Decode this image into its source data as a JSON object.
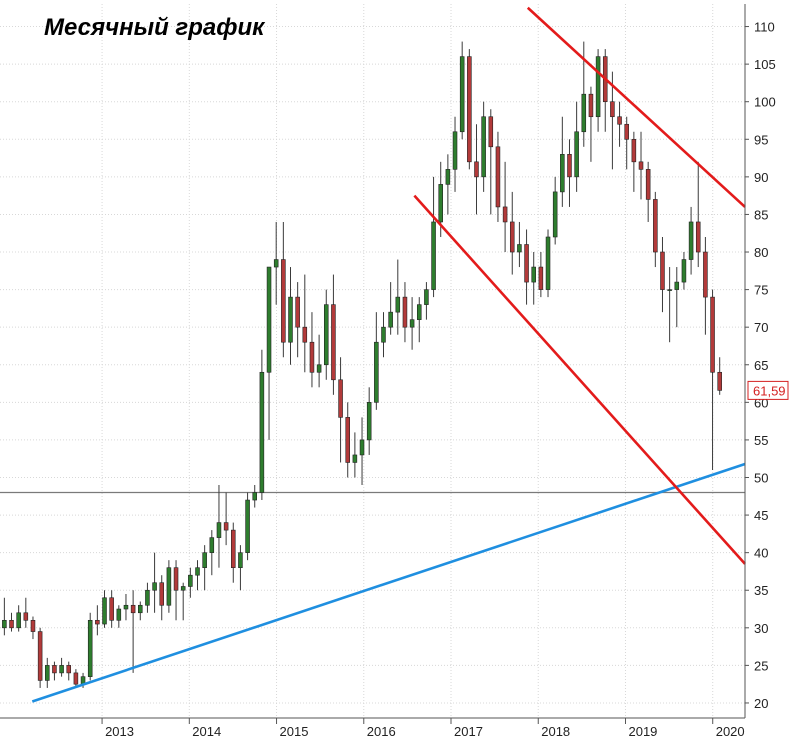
{
  "title": "Месячный график",
  "price_badge": "61,59",
  "colors": {
    "up_fill": "#2e7d2e",
    "down_fill": "#b23a3a",
    "wick": "#3a3a3a",
    "resistance_line": "#e31b1b",
    "support_line": "#1f8fe0",
    "level_line": "#7a7a7a",
    "badge_text": "#d42020",
    "axis": "#555555"
  },
  "chart_data": {
    "type": "candlestick",
    "title": "Месячный график",
    "xlabel": "",
    "ylabel": "",
    "ylim": [
      18,
      113
    ],
    "y_ticks": [
      20,
      25,
      30,
      35,
      40,
      45,
      50,
      55,
      60,
      65,
      70,
      75,
      80,
      85,
      90,
      95,
      100,
      105,
      110
    ],
    "x_ticks": [
      "2013",
      "2014",
      "2015",
      "2016",
      "2017",
      "2018",
      "2019",
      "2020"
    ],
    "x_tick_positions": [
      2013,
      2014,
      2015,
      2016,
      2017,
      2018,
      2019,
      2020
    ],
    "x_range": [
      2011.83,
      2020.37
    ],
    "last_price": 61.59,
    "horizontal_level": 48,
    "trendlines": [
      {
        "name": "",
        "color": "#1f8fe0",
        "from": [
          2012.2,
          20.2
        ],
        "to": [
          2020.37,
          51.8
        ]
      },
      {
        "name": "",
        "color": "#e31b1b",
        "from": [
          2017.88,
          112.5
        ],
        "to": [
          2020.37,
          86
        ]
      },
      {
        "name": "",
        "color": "#e31b1b",
        "from": [
          2016.58,
          87.5
        ],
        "to": [
          2020.37,
          38.5
        ]
      }
    ],
    "candles_ohlc": [
      [
        30,
        34,
        29,
        31
      ],
      [
        31,
        32,
        29.5,
        30
      ],
      [
        30,
        33,
        29.5,
        32
      ],
      [
        32,
        34,
        30,
        31
      ],
      [
        31,
        31.5,
        28.5,
        29.5
      ],
      [
        29.5,
        30,
        22,
        23
      ],
      [
        23,
        26,
        22,
        25
      ],
      [
        25,
        25.5,
        23,
        24
      ],
      [
        24,
        26,
        23.5,
        25
      ],
      [
        25,
        25.5,
        23,
        24
      ],
      [
        24,
        24.5,
        22,
        22.5
      ],
      [
        22.5,
        24,
        22,
        23.5
      ],
      [
        23.5,
        32,
        23,
        31
      ],
      [
        31,
        33,
        29,
        30.5
      ],
      [
        30.5,
        35,
        30,
        34
      ],
      [
        34,
        35,
        30,
        31
      ],
      [
        31,
        33,
        30,
        32.5
      ],
      [
        32.5,
        34.5,
        31,
        33
      ],
      [
        33,
        35,
        24,
        32
      ],
      [
        32,
        33.5,
        31,
        33
      ],
      [
        33,
        36,
        32,
        35
      ],
      [
        35,
        40,
        32,
        36
      ],
      [
        36,
        37,
        31,
        33
      ],
      [
        33,
        39,
        32,
        38
      ],
      [
        38,
        39,
        31,
        35
      ],
      [
        35,
        36,
        31,
        35.5
      ],
      [
        35.5,
        38,
        34,
        37
      ],
      [
        37,
        39,
        35,
        38
      ],
      [
        38,
        41,
        35,
        40
      ],
      [
        40,
        43,
        37,
        42
      ],
      [
        42,
        49,
        38,
        44
      ],
      [
        44,
        48,
        41,
        43
      ],
      [
        43,
        44,
        36,
        38
      ],
      [
        38,
        41,
        35,
        40
      ],
      [
        40,
        48,
        39,
        47
      ],
      [
        47,
        49,
        46,
        48
      ],
      [
        48,
        67,
        47,
        64
      ],
      [
        64,
        72,
        55,
        78
      ],
      [
        78,
        84,
        73,
        79
      ],
      [
        79,
        84,
        66,
        68
      ],
      [
        68,
        78,
        65,
        74
      ],
      [
        74,
        76,
        66,
        70
      ],
      [
        70,
        77,
        64,
        68
      ],
      [
        68,
        72,
        62,
        64
      ],
      [
        64,
        69,
        62,
        65
      ],
      [
        65,
        75,
        63,
        73
      ],
      [
        73,
        77,
        61,
        63
      ],
      [
        63,
        66,
        52,
        58
      ],
      [
        58,
        60,
        50,
        52
      ],
      [
        52,
        56,
        50,
        53
      ],
      [
        53,
        58,
        49,
        55
      ],
      [
        55,
        62,
        53,
        60
      ],
      [
        60,
        72,
        59,
        68
      ],
      [
        68,
        72,
        66,
        70
      ],
      [
        70,
        76,
        69,
        72
      ],
      [
        72,
        79,
        69,
        74
      ],
      [
        74,
        76,
        68,
        70
      ],
      [
        70,
        74,
        67,
        71
      ],
      [
        71,
        74,
        68,
        73
      ],
      [
        73,
        76,
        71,
        75
      ],
      [
        75,
        90,
        74,
        84
      ],
      [
        84,
        92,
        82,
        89
      ],
      [
        89,
        93,
        85,
        91
      ],
      [
        91,
        98,
        88,
        96
      ],
      [
        96,
        108,
        95,
        106
      ],
      [
        106,
        107,
        91,
        92
      ],
      [
        92,
        97,
        85,
        90
      ],
      [
        90,
        100,
        88,
        98
      ],
      [
        98,
        99,
        85,
        94
      ],
      [
        94,
        96,
        84,
        86
      ],
      [
        86,
        92,
        80,
        84
      ],
      [
        84,
        88,
        77,
        80
      ],
      [
        80,
        84,
        78,
        81
      ],
      [
        81,
        83,
        73,
        76
      ],
      [
        76,
        80,
        73,
        78
      ],
      [
        78,
        80,
        74,
        75
      ],
      [
        75,
        83,
        74,
        82
      ],
      [
        82,
        90,
        81,
        88
      ],
      [
        88,
        98,
        86,
        93
      ],
      [
        93,
        95,
        86,
        90
      ],
      [
        90,
        100,
        88,
        96
      ],
      [
        96,
        108,
        94,
        101
      ],
      [
        101,
        102,
        92,
        98
      ],
      [
        98,
        107,
        96,
        106
      ],
      [
        106,
        107,
        96,
        100
      ],
      [
        100,
        104,
        91,
        98
      ],
      [
        98,
        100,
        94,
        97
      ],
      [
        97,
        98,
        91,
        95
      ],
      [
        95,
        96,
        88,
        92
      ],
      [
        92,
        96,
        87,
        91
      ],
      [
        91,
        92,
        84,
        87
      ],
      [
        87,
        88,
        78,
        80
      ],
      [
        80,
        82,
        72,
        75
      ],
      [
        75,
        78,
        68,
        75
      ],
      [
        75,
        78,
        70,
        76
      ],
      [
        76,
        80,
        75,
        79
      ],
      [
        79,
        86,
        77,
        84
      ],
      [
        84,
        92,
        78,
        80
      ],
      [
        80,
        82,
        69,
        74
      ],
      [
        74,
        75,
        51,
        64
      ],
      [
        64,
        66,
        61,
        61.59
      ]
    ]
  }
}
